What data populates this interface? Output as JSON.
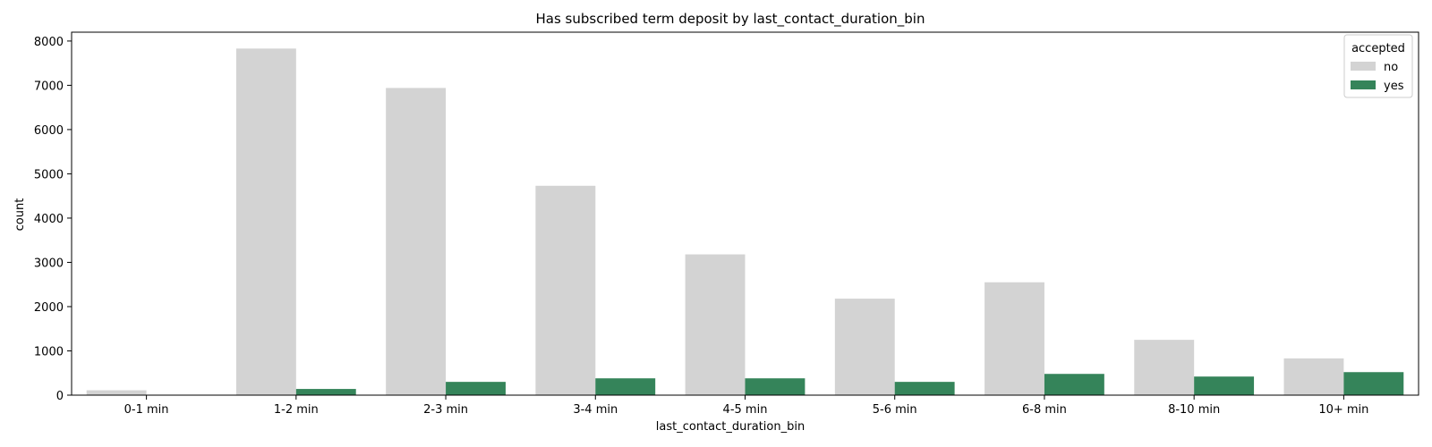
{
  "chart_data": {
    "type": "bar",
    "title": "Has subscribed term deposit by last_contact_duration_bin",
    "xlabel": "last_contact_duration_bin",
    "ylabel": "count",
    "categories": [
      "0-1 min",
      "1-2 min",
      "2-3 min",
      "3-4 min",
      "4-5 min",
      "5-6 min",
      "6-8 min",
      "8-10 min",
      "10+ min"
    ],
    "series": [
      {
        "name": "no",
        "color": "#d3d3d3",
        "values": [
          110,
          7830,
          6940,
          4730,
          3180,
          2180,
          2550,
          1250,
          830
        ]
      },
      {
        "name": "yes",
        "color": "#35845a",
        "values": [
          0,
          140,
          300,
          380,
          380,
          300,
          480,
          420,
          520
        ]
      }
    ],
    "ylim": [
      0,
      8200
    ],
    "yticks": [
      0,
      1000,
      2000,
      3000,
      4000,
      5000,
      6000,
      7000,
      8000
    ],
    "legend": {
      "title": "accepted",
      "placement": "top-right"
    },
    "grid": false
  }
}
